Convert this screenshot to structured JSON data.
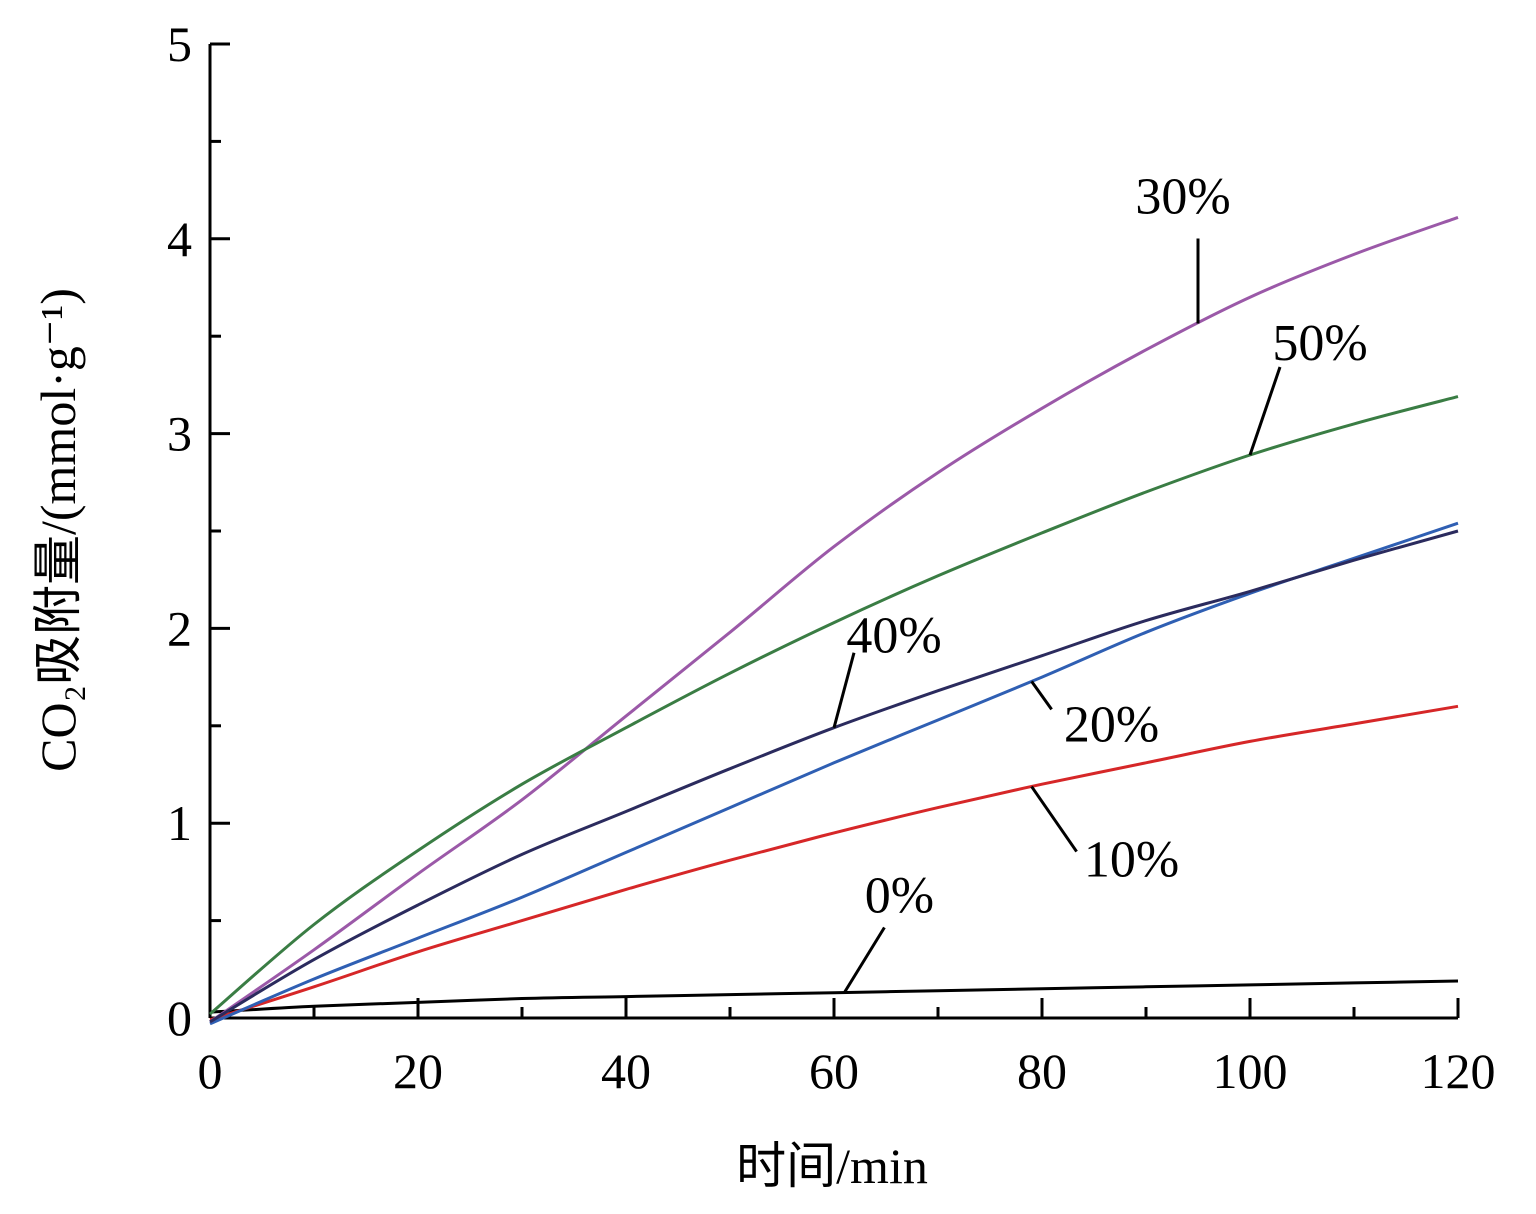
{
  "chart_data": {
    "type": "line",
    "xlabel": "时间/min",
    "ylabel": "CO₂吸附量/(mmol·g⁻¹)",
    "xlim": [
      0,
      120
    ],
    "ylim": [
      0,
      5
    ],
    "x_ticks": [
      "0",
      "20",
      "40",
      "60",
      "80",
      "100",
      "120"
    ],
    "y_ticks": [
      "0",
      "1",
      "2",
      "3",
      "4",
      "5"
    ],
    "grid": false,
    "legend": "inline labels with leader lines",
    "x": [
      0,
      10,
      20,
      30,
      40,
      50,
      60,
      70,
      80,
      90,
      100,
      110,
      120
    ],
    "series": [
      {
        "name": "0%",
        "color": "#000000",
        "values": [
          0.03,
          0.06,
          0.08,
          0.1,
          0.11,
          0.12,
          0.13,
          0.14,
          0.15,
          0.16,
          0.17,
          0.18,
          0.19
        ]
      },
      {
        "name": "10%",
        "color": "#d62728",
        "values": [
          -0.01,
          0.16,
          0.34,
          0.5,
          0.66,
          0.81,
          0.95,
          1.08,
          1.2,
          1.31,
          1.42,
          1.51,
          1.6
        ]
      },
      {
        "name": "20%",
        "color": "#2f5fb3",
        "values": [
          -0.03,
          0.2,
          0.41,
          0.62,
          0.85,
          1.08,
          1.31,
          1.53,
          1.75,
          1.98,
          2.18,
          2.36,
          2.54
        ]
      },
      {
        "name": "30%",
        "color": "#9b59a8",
        "values": [
          -0.02,
          0.35,
          0.74,
          1.12,
          1.55,
          1.98,
          2.42,
          2.8,
          3.13,
          3.43,
          3.7,
          3.92,
          4.11
        ]
      },
      {
        "name": "40%",
        "color": "#2b2b5e",
        "values": [
          -0.02,
          0.3,
          0.58,
          0.84,
          1.06,
          1.28,
          1.49,
          1.68,
          1.86,
          2.04,
          2.19,
          2.35,
          2.5
        ]
      },
      {
        "name": "50%",
        "color": "#3a7d44",
        "values": [
          0.02,
          0.48,
          0.86,
          1.2,
          1.49,
          1.77,
          2.03,
          2.27,
          2.49,
          2.7,
          2.89,
          3.05,
          3.19
        ]
      }
    ],
    "annotations": [
      {
        "text": "30%",
        "series": "30%",
        "at_x": 95
      },
      {
        "text": "50%",
        "series": "50%",
        "at_x": 100
      },
      {
        "text": "40%",
        "series": "40%",
        "at_x": 60
      },
      {
        "text": "20%",
        "series": "20%",
        "at_x": 79
      },
      {
        "text": "10%",
        "series": "10%",
        "at_x": 79
      },
      {
        "text": "0%",
        "series": "0%",
        "at_x": 61
      }
    ]
  }
}
